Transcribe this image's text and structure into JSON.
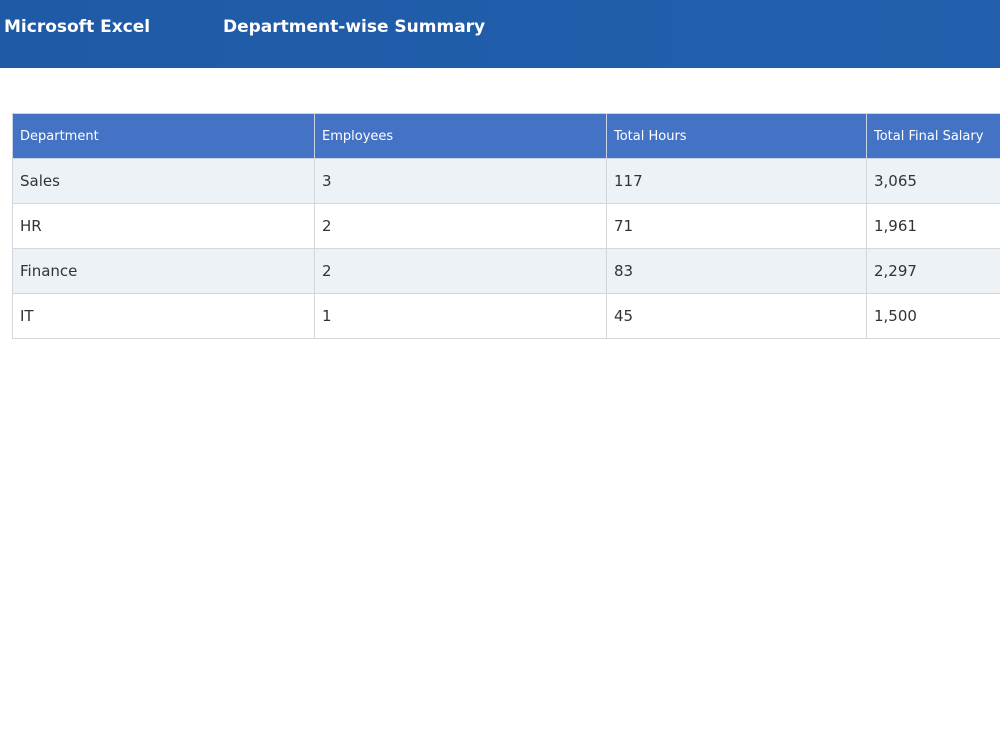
{
  "window": {
    "app_name": "Microsoft Excel",
    "title": "Department-wise Summary"
  },
  "table": {
    "headers": [
      "Department",
      "Employees",
      "Total Hours",
      "Total Final Salary"
    ],
    "rows": [
      [
        "Sales",
        "3",
        "117",
        "3,065"
      ],
      [
        "HR",
        "2",
        "71",
        "1,961"
      ],
      [
        "Finance",
        "2",
        "83",
        "2,297"
      ],
      [
        "IT",
        "1",
        "45",
        "1,500"
      ]
    ]
  },
  "colors": {
    "titlebar": "#1f5aa6",
    "header": "#4472c4",
    "band": "#edf2f7"
  }
}
